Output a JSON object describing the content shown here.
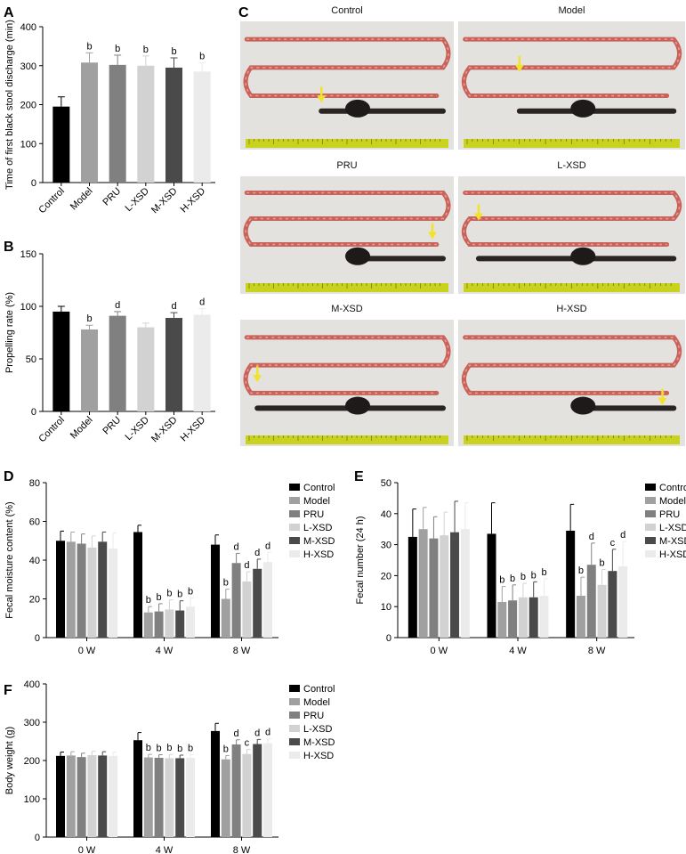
{
  "panels": {
    "A": "A",
    "B": "B",
    "C": "C",
    "D": "D",
    "E": "E",
    "F": "F"
  },
  "photos": {
    "items": [
      {
        "label": "Control"
      },
      {
        "label": "Model"
      },
      {
        "label": "PRU"
      },
      {
        "label": "L-XSD"
      },
      {
        "label": "M-XSD"
      },
      {
        "label": "H-XSD"
      }
    ]
  },
  "colors": [
    "#000000",
    "#a0a0a0",
    "#808080",
    "#d2d2d2",
    "#4a4a4a",
    "#ebebeb"
  ],
  "chart_data": [
    {
      "id": "A",
      "type": "bar",
      "categories": [
        "Control",
        "Model",
        "PRU",
        "L-XSD",
        "M-XSD",
        "H-XSD"
      ],
      "values": [
        195,
        308,
        302,
        300,
        295,
        285
      ],
      "errors": [
        25,
        25,
        25,
        25,
        25,
        22
      ],
      "sig": [
        "",
        "b",
        "b",
        "b",
        "b",
        "b"
      ],
      "ylabel": "Time of first black stool discharge (min)",
      "ylim": [
        0,
        400
      ],
      "yticks": [
        0,
        100,
        200,
        300,
        400
      ]
    },
    {
      "id": "B",
      "type": "bar",
      "categories": [
        "Control",
        "Model",
        "PRU",
        "L-XSD",
        "M-XSD",
        "H-XSD"
      ],
      "values": [
        95,
        78,
        91,
        80,
        89,
        92
      ],
      "errors": [
        5,
        4,
        4,
        4,
        5,
        6
      ],
      "sig": [
        "",
        "b",
        "d",
        "",
        "d",
        "d"
      ],
      "ylabel": "Propelling rate (%)",
      "ylim": [
        0,
        150
      ],
      "yticks": [
        0,
        50,
        100,
        150
      ]
    },
    {
      "id": "D",
      "type": "bar",
      "groups": [
        "0 W",
        "4 W",
        "8 W"
      ],
      "series": [
        {
          "name": "Control",
          "values": [
            50,
            54.5,
            48
          ],
          "errors": [
            5,
            3.5,
            5
          ],
          "sig": [
            "",
            "",
            ""
          ]
        },
        {
          "name": "Model",
          "values": [
            49.5,
            13,
            20
          ],
          "errors": [
            5,
            3,
            5
          ],
          "sig": [
            "",
            "b",
            "b"
          ]
        },
        {
          "name": "PRU",
          "values": [
            48.5,
            13.5,
            38.5
          ],
          "errors": [
            5,
            4,
            5
          ],
          "sig": [
            "",
            "b",
            "d"
          ]
        },
        {
          "name": "L-XSD",
          "values": [
            46.5,
            14.5,
            29
          ],
          "errors": [
            6,
            5,
            5
          ],
          "sig": [
            "",
            "b",
            "d"
          ]
        },
        {
          "name": "M-XSD",
          "values": [
            49.5,
            14,
            35.5
          ],
          "errors": [
            5,
            5,
            5
          ],
          "sig": [
            "",
            "b",
            "d"
          ]
        },
        {
          "name": "H-XSD",
          "values": [
            46,
            16,
            39
          ],
          "errors": [
            8,
            4.5,
            5
          ],
          "sig": [
            "",
            "b",
            "d"
          ]
        }
      ],
      "ylabel": "Fecal moisture content (%)",
      "ylim": [
        0,
        80
      ],
      "yticks": [
        0,
        20,
        40,
        60,
        80
      ]
    },
    {
      "id": "E",
      "type": "bar",
      "groups": [
        "0 W",
        "4 W",
        "8 W"
      ],
      "series": [
        {
          "name": "Control",
          "values": [
            32.5,
            33.5,
            34.5
          ],
          "errors": [
            9,
            10,
            8.5
          ],
          "sig": [
            "",
            "",
            ""
          ]
        },
        {
          "name": "Model",
          "values": [
            35,
            11.5,
            13.5
          ],
          "errors": [
            7,
            5,
            6
          ],
          "sig": [
            "",
            "b",
            "b"
          ]
        },
        {
          "name": "PRU",
          "values": [
            32,
            12,
            23.5
          ],
          "errors": [
            7,
            5,
            7
          ],
          "sig": [
            "",
            "b",
            "d"
          ]
        },
        {
          "name": "L-XSD",
          "values": [
            33,
            13,
            17
          ],
          "errors": [
            7.5,
            4.5,
            5
          ],
          "sig": [
            "",
            "b",
            "b"
          ]
        },
        {
          "name": "M-XSD",
          "values": [
            34,
            13,
            21.5
          ],
          "errors": [
            10,
            5,
            7
          ],
          "sig": [
            "",
            "b",
            "c"
          ]
        },
        {
          "name": "H-XSD",
          "values": [
            35,
            13.5,
            23
          ],
          "errors": [
            8.5,
            5.5,
            8
          ],
          "sig": [
            "",
            "b",
            "d"
          ]
        }
      ],
      "ylabel": "Fecal number (24 h)",
      "ylim": [
        0,
        50
      ],
      "yticks": [
        0,
        10,
        20,
        30,
        40,
        50
      ]
    },
    {
      "id": "F",
      "type": "bar",
      "groups": [
        "0 W",
        "4 W",
        "8 W"
      ],
      "series": [
        {
          "name": "Control",
          "values": [
            212,
            253,
            277
          ],
          "errors": [
            10,
            20,
            20
          ],
          "sig": [
            "",
            "",
            ""
          ]
        },
        {
          "name": "Model",
          "values": [
            213,
            208,
            203
          ],
          "errors": [
            10,
            8,
            10
          ],
          "sig": [
            "",
            "b",
            "b"
          ]
        },
        {
          "name": "PRU",
          "values": [
            209,
            207,
            242
          ],
          "errors": [
            10,
            8,
            12
          ],
          "sig": [
            "",
            "b",
            "d"
          ]
        },
        {
          "name": "L-XSD",
          "values": [
            214,
            206,
            217
          ],
          "errors": [
            10,
            10,
            12
          ],
          "sig": [
            "",
            "b",
            "c"
          ]
        },
        {
          "name": "M-XSD",
          "values": [
            213,
            206,
            243
          ],
          "errors": [
            10,
            8,
            12
          ],
          "sig": [
            "",
            "b",
            "d"
          ]
        },
        {
          "name": "H-XSD",
          "values": [
            212,
            207,
            245
          ],
          "errors": [
            10,
            8,
            12
          ],
          "sig": [
            "",
            "b",
            "d"
          ]
        }
      ],
      "ylabel": "Body weight (g)",
      "ylim": [
        0,
        400
      ],
      "yticks": [
        0,
        100,
        200,
        300,
        400
      ]
    }
  ]
}
